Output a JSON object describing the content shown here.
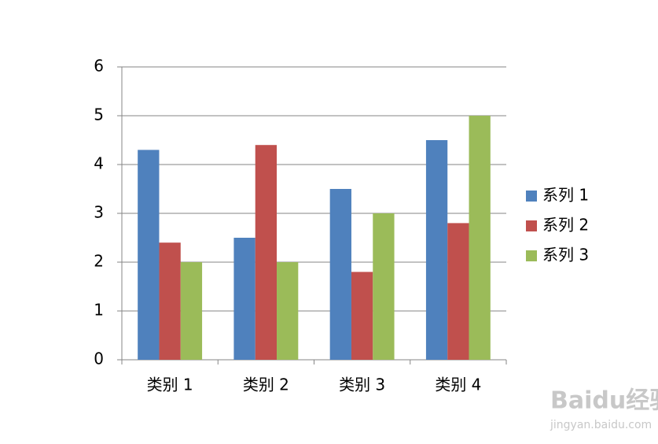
{
  "chart_data": {
    "type": "bar",
    "categories": [
      "类别 1",
      "类别 2",
      "类别 3",
      "类别 4"
    ],
    "series": [
      {
        "name": "系列 1",
        "color": "#4f81bd",
        "values": [
          4.3,
          2.5,
          3.5,
          4.5
        ]
      },
      {
        "name": "系列 2",
        "color": "#c0504d",
        "values": [
          2.4,
          4.4,
          1.8,
          2.8
        ]
      },
      {
        "name": "系列 3",
        "color": "#9bbb59",
        "values": [
          2,
          2,
          3,
          5
        ]
      }
    ],
    "ylim": [
      0,
      6
    ],
    "yticks": [
      0,
      1,
      2,
      3,
      4,
      5,
      6
    ],
    "grid": true,
    "legend": "right"
  },
  "watermark": {
    "brand": "Baidu经验",
    "url": "jingyan.baidu.com"
  }
}
